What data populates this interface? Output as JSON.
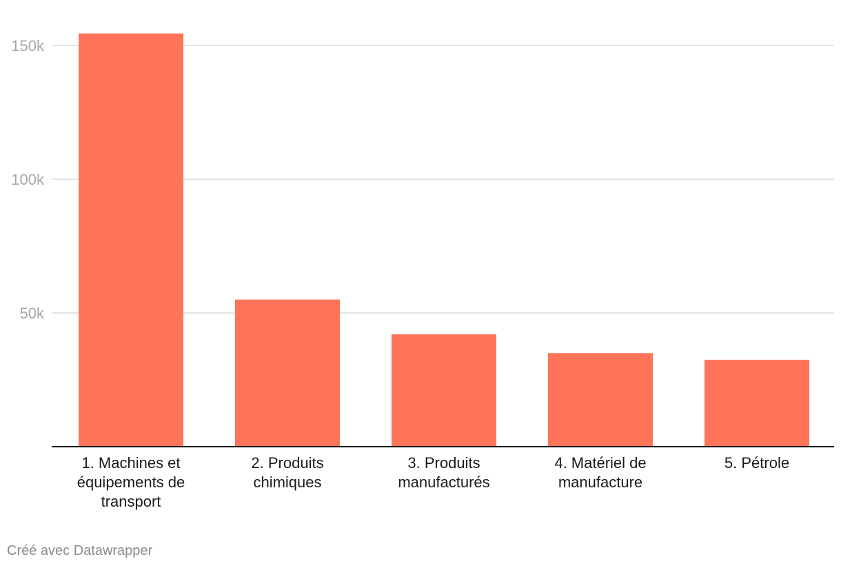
{
  "chart_data": {
    "type": "bar",
    "categories": [
      "1. Machines et équipements de transport",
      "2. Produits chimiques",
      "3. Produits manufacturés",
      "4. Matériel de manufacture",
      "5. Pétrole"
    ],
    "category_lines": [
      [
        "1. Machines et",
        "équipements de",
        "transport"
      ],
      [
        "2. Produits",
        "chimiques"
      ],
      [
        "3. Produits",
        "manufacturés"
      ],
      [
        "4. Matériel de",
        "manufacture"
      ],
      [
        "5. Pétrole"
      ]
    ],
    "values": [
      154500,
      55000,
      42000,
      35000,
      32500
    ],
    "yticks": [
      50000,
      100000,
      150000
    ],
    "ytick_labels": [
      "50k",
      "100k",
      "150k"
    ],
    "ylim": [
      0,
      155000
    ],
    "grid": true,
    "bar_color": "#ff7459",
    "title": "",
    "xlabel": "",
    "ylabel": ""
  },
  "footer": {
    "credit": "Créé avec Datawrapper"
  }
}
